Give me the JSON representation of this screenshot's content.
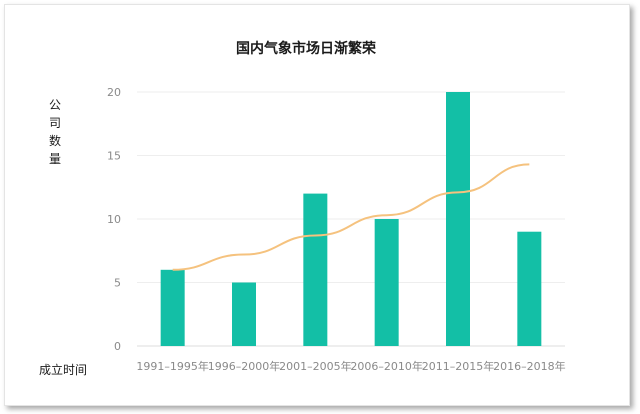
{
  "chart_data": {
    "type": "bar",
    "title": "国内气象市场日渐繁荣",
    "ylabel": "公司数量",
    "xlabel": "成立时间",
    "categories": [
      "1991–1995年",
      "1996–2000年",
      "2001–2005年",
      "2006–2010年",
      "2011–2015年",
      "2016–2018年"
    ],
    "values": [
      6,
      5,
      12,
      10,
      20,
      9
    ],
    "trend": [
      6.0,
      7.2,
      8.7,
      10.3,
      12.1,
      14.3
    ],
    "ylim": [
      0,
      20
    ],
    "yticks": [
      0,
      5,
      10,
      15,
      20
    ],
    "grid": true,
    "bar_color": "#13BFA6",
    "trend_color": "#F5C27E"
  }
}
